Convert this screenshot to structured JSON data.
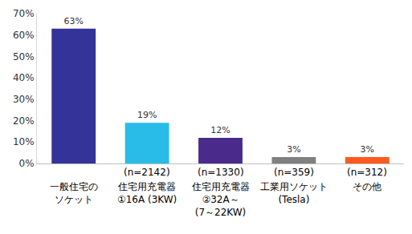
{
  "chart_data": {
    "type": "bar",
    "categories": [
      "一般住宅の\nソケット",
      "住宅用充電器\n①16A (3KW)",
      "住宅用充電器\n②32A～\n(7～22KW)",
      "工業用ソケット\n(Tesla)",
      "その他"
    ],
    "values": [
      63,
      19,
      12,
      3,
      3
    ],
    "value_labels": [
      "63%",
      "19%",
      "12%",
      "3%",
      "3%"
    ],
    "colors": [
      "#333399",
      "#29bce8",
      "#4a2a8a",
      "#808080",
      "#ff5a1f"
    ],
    "ylim": [
      0,
      70
    ],
    "yticks": [
      {
        "value": 0,
        "label": "0%"
      },
      {
        "value": 10,
        "label": "10%"
      },
      {
        "value": 20,
        "label": "20%"
      },
      {
        "value": 30,
        "label": "30%"
      },
      {
        "value": 40,
        "label": "40%"
      },
      {
        "value": 50,
        "label": "50%"
      },
      {
        "value": 60,
        "label": "60%"
      },
      {
        "value": 70,
        "label": "70%"
      }
    ],
    "grid": false,
    "data_labels": true,
    "annotations": [
      {
        "text": "(n=2142)",
        "category_index": 1
      },
      {
        "text": "(n=1330)",
        "category_index": 2
      },
      {
        "text": "(n=359)",
        "category_index": 3
      },
      {
        "text": "(n=312)",
        "category_index": 4
      }
    ]
  }
}
